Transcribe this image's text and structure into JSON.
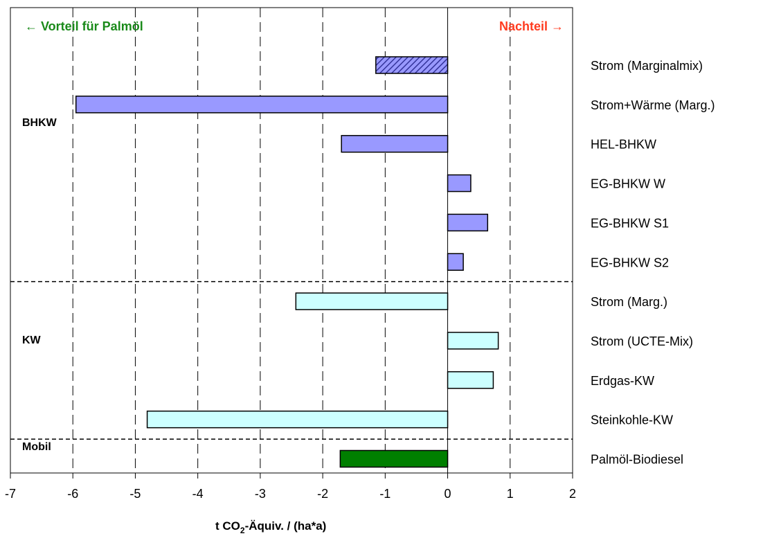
{
  "chart_data": {
    "type": "bar",
    "orientation": "horizontal",
    "xlim": [
      -7,
      2
    ],
    "xticks": [
      "-7",
      "-6",
      "-5",
      "-4",
      "-3",
      "-2",
      "-1",
      "0",
      "1",
      "2"
    ],
    "xlabel_main": "t CO",
    "xlabel_sub": "2",
    "xlabel_rest": "-Äquiv. / (ha*a)",
    "header_left": "← Vorteil für Palmöl",
    "header_right": "Nachteil →",
    "header_left_color": "#1a8a1a",
    "header_right_color": "#ff3b1f",
    "grid": "vertical dashed",
    "groups": [
      {
        "label": "BHKW",
        "span": [
          0,
          5
        ]
      },
      {
        "label": "KW",
        "span": [
          6,
          9
        ]
      },
      {
        "label": "Mobil",
        "span": [
          10,
          10
        ]
      }
    ],
    "categories": [
      "Strom (Marginalmix)",
      "Strom+Wärme (Marg.)",
      "HEL-BHKW",
      "EG-BHKW W",
      "EG-BHKW S1",
      "EG-BHKW S2",
      "Strom (Marg.)",
      "Strom (UCTE-Mix)",
      "Erdgas-KW",
      "Steinkohle-KW",
      "Palmöl-Biodiesel"
    ],
    "values": [
      -1.15,
      -5.95,
      -1.7,
      0.37,
      0.64,
      0.25,
      -2.43,
      0.81,
      0.73,
      -4.81,
      -1.72
    ],
    "bar_styles": [
      "hatched",
      "solid",
      "solid",
      "solid",
      "solid",
      "solid",
      "solid",
      "solid",
      "solid",
      "solid",
      "solid"
    ],
    "bar_colors": [
      "#9999ff",
      "#9999ff",
      "#9999ff",
      "#9999ff",
      "#9999ff",
      "#9999ff",
      "#ccffff",
      "#ccffff",
      "#ccffff",
      "#ccffff",
      "#007f00"
    ],
    "hatch_color": "#333399"
  }
}
